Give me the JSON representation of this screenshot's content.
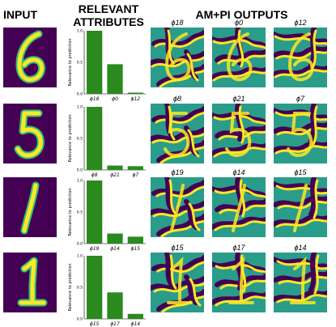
{
  "headers": {
    "input": "INPUT",
    "relevant_line1": "RELEVANT",
    "relevant_line2": "ATTRIBUTES",
    "outputs": "AM+PI OUTPUTS"
  },
  "colors": {
    "bar": "#2a8a1e",
    "viridis_dark": "#440154",
    "viridis_yellow": "#fde725",
    "viridis_teal": "#2a9c8a"
  },
  "chart_data": [
    {
      "type": "bar",
      "ylabel": "Relevance to prediction",
      "yticks": [
        "0.0",
        "0.5",
        "1.0"
      ],
      "ylim": [
        0,
        1.0
      ],
      "categories": [
        "ϕ18",
        "ϕ0",
        "ϕ12"
      ],
      "values": [
        1.0,
        0.47,
        0.02
      ]
    },
    {
      "type": "bar",
      "ylabel": "Relevance to prediction",
      "yticks": [
        "0.0",
        "0.5",
        "1.0"
      ],
      "ylim": [
        0,
        1.0
      ],
      "categories": [
        "ϕ8",
        "ϕ21",
        "ϕ7"
      ],
      "values": [
        1.0,
        0.07,
        0.06
      ]
    },
    {
      "type": "bar",
      "ylabel": "Relevance to prediction",
      "yticks": [
        "0.0",
        "0.5",
        "1.0"
      ],
      "ylim": [
        0,
        1.0
      ],
      "categories": [
        "ϕ19",
        "ϕ14",
        "ϕ15"
      ],
      "values": [
        1.0,
        0.16,
        0.11
      ]
    },
    {
      "type": "bar",
      "ylabel": "Relevance to prediction",
      "yticks": [
        "0.0",
        "0.5",
        "1.0"
      ],
      "ylim": [
        0,
        1.0
      ],
      "categories": [
        "ϕ15",
        "ϕ17",
        "ϕ14"
      ],
      "values": [
        1.0,
        0.42,
        0.08
      ]
    }
  ],
  "rows": [
    {
      "digit": "6",
      "outputs": [
        "ϕ18",
        "ϕ0",
        "ϕ12"
      ]
    },
    {
      "digit": "5",
      "outputs": [
        "ϕ8",
        "ϕ21",
        "ϕ7"
      ]
    },
    {
      "digit": "1",
      "outputs": [
        "ϕ19",
        "ϕ14",
        "ϕ15"
      ]
    },
    {
      "digit": "1",
      "outputs": [
        "ϕ15",
        "ϕ17",
        "ϕ14"
      ]
    }
  ]
}
